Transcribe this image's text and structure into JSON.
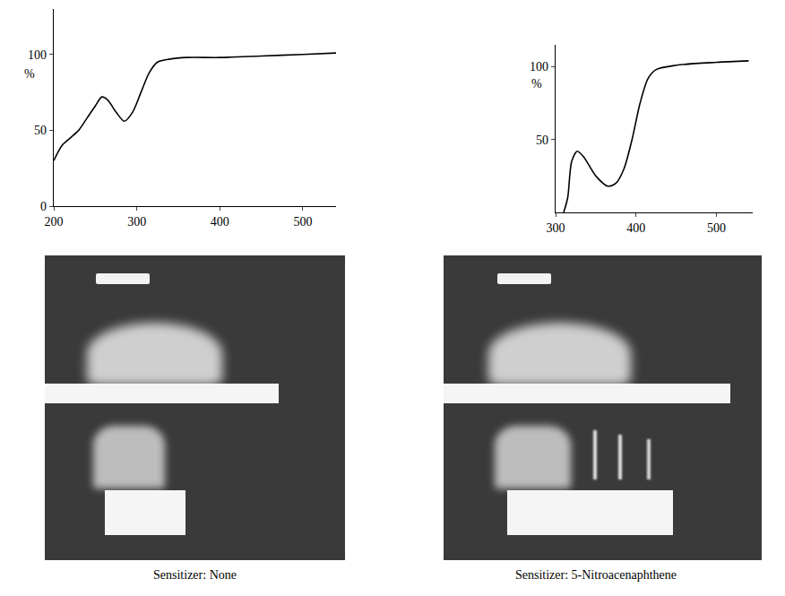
{
  "chart_data": [
    {
      "type": "line",
      "color": "#000000",
      "x": [
        200,
        210,
        220,
        230,
        240,
        250,
        258,
        265,
        275,
        285,
        295,
        305,
        315,
        325,
        340,
        360,
        400,
        450,
        500,
        540
      ],
      "values": [
        30,
        40,
        45,
        50,
        58,
        66,
        72,
        70,
        62,
        56,
        62,
        75,
        88,
        95,
        97,
        98,
        98,
        99,
        100,
        101
      ],
      "xlim": [
        200,
        540
      ],
      "ylim": [
        0,
        130
      ],
      "xticks": [
        200,
        300,
        400,
        500
      ],
      "yticks": [
        0,
        50,
        100
      ],
      "ylabel": "%",
      "annotations": [
        "Sensitizer: None"
      ]
    },
    {
      "type": "line",
      "color": "#000000",
      "x": [
        310,
        315,
        320,
        327,
        335,
        350,
        365,
        375,
        385,
        395,
        405,
        415,
        425,
        450,
        500,
        540
      ],
      "values": [
        0,
        10,
        35,
        42,
        38,
        25,
        18,
        20,
        30,
        50,
        75,
        92,
        98,
        101,
        103,
        104
      ],
      "xlim": [
        300,
        545
      ],
      "ylim": [
        0,
        115
      ],
      "xticks": [
        300,
        400,
        500
      ],
      "yticks": [
        50,
        100
      ],
      "ylabel": "%",
      "annotations": [
        "Sensitizer: 5-Nitroacenaphthene"
      ]
    }
  ]
}
